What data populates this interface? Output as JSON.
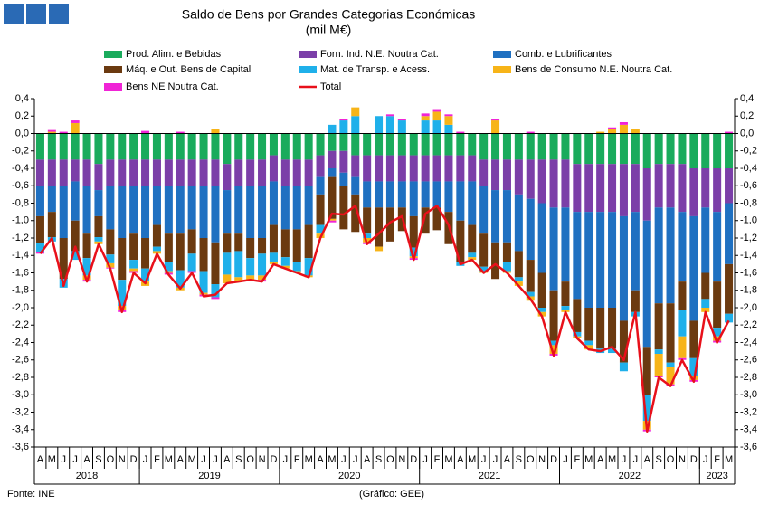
{
  "chart_data": {
    "type": "stacked-bar",
    "title": "Saldo de Bens por Grandes Categorias Económicas",
    "subtitle": "(mil M€)",
    "source": "Fonte: INE",
    "credit": "(Gráfico: GEE)",
    "categories": [
      "A",
      "M",
      "J",
      "J",
      "A",
      "S",
      "O",
      "N",
      "D",
      "J",
      "F",
      "M",
      "A",
      "M",
      "J",
      "J",
      "A",
      "S",
      "O",
      "N",
      "D",
      "J",
      "F",
      "M",
      "A",
      "M",
      "J",
      "J",
      "A",
      "S",
      "O",
      "N",
      "D",
      "J",
      "F",
      "M",
      "A",
      "M",
      "J",
      "J",
      "A",
      "S",
      "O",
      "N",
      "D",
      "J",
      "F",
      "M",
      "A",
      "M",
      "J",
      "J",
      "A",
      "S",
      "O",
      "N",
      "D",
      "J",
      "F",
      "M"
    ],
    "years": [
      "2018",
      "2019",
      "2020",
      "2021",
      "2022",
      "2023"
    ],
    "ylim": [
      -3.6,
      0.4
    ],
    "yticks": [
      {
        "value": 0.4,
        "label": "0,4"
      },
      {
        "value": 0.2,
        "label": "0,2"
      },
      {
        "value": 0,
        "label": "0,0"
      },
      {
        "value": -0.2,
        "label": "-0,2"
      },
      {
        "value": -0.4,
        "label": "-0,4"
      },
      {
        "value": -0.6,
        "label": "-0,6"
      },
      {
        "value": -0.8,
        "label": "-0,8"
      },
      {
        "value": -1.0,
        "label": "-1,0"
      },
      {
        "value": -1.2,
        "label": "-1,2"
      },
      {
        "value": -1.4,
        "label": "-1,4"
      },
      {
        "value": -1.6,
        "label": "-1,6"
      },
      {
        "value": -1.8,
        "label": "-1,8"
      },
      {
        "value": -2.0,
        "label": "-2,0"
      },
      {
        "value": -2.2,
        "label": "-2,2"
      },
      {
        "value": -2.4,
        "label": "-2,4"
      },
      {
        "value": -2.6,
        "label": "-2,6"
      },
      {
        "value": -2.8,
        "label": "-2,8"
      },
      {
        "value": -3.0,
        "label": "-3,0"
      },
      {
        "value": -3.2,
        "label": "-3,2"
      },
      {
        "value": -3.4,
        "label": "-3,4"
      },
      {
        "value": -3.6,
        "label": "-3,6"
      }
    ],
    "grid": false,
    "series": [
      {
        "name": "Prod. Alim. e Bebidas",
        "color": "#1aab5c",
        "values": [
          -0.3,
          -0.3,
          -0.3,
          -0.3,
          -0.3,
          -0.35,
          -0.3,
          -0.3,
          -0.3,
          -0.3,
          -0.3,
          -0.3,
          -0.3,
          -0.3,
          -0.3,
          -0.3,
          -0.35,
          -0.3,
          -0.3,
          -0.3,
          -0.25,
          -0.3,
          -0.3,
          -0.3,
          -0.25,
          -0.2,
          -0.2,
          -0.25,
          -0.25,
          -0.25,
          -0.25,
          -0.25,
          -0.25,
          -0.25,
          -0.25,
          -0.25,
          -0.25,
          -0.25,
          -0.3,
          -0.3,
          -0.3,
          -0.3,
          -0.3,
          -0.3,
          -0.3,
          -0.3,
          -0.35,
          -0.35,
          -0.35,
          -0.35,
          -0.35,
          -0.35,
          -0.4,
          -0.35,
          -0.35,
          -0.35,
          -0.4,
          -0.4,
          -0.4,
          -0.4
        ]
      },
      {
        "name": "Forn. Ind. N.E. Noutra Cat.",
        "color": "#7b3fa8",
        "values": [
          -0.3,
          -0.3,
          -0.3,
          -0.25,
          -0.3,
          -0.3,
          -0.3,
          -0.3,
          -0.3,
          -0.3,
          -0.3,
          -0.3,
          -0.3,
          -0.3,
          -0.3,
          -0.3,
          -0.3,
          -0.3,
          -0.3,
          -0.3,
          -0.3,
          -0.3,
          -0.3,
          -0.3,
          -0.25,
          -0.2,
          -0.25,
          -0.25,
          -0.3,
          -0.3,
          -0.3,
          -0.3,
          -0.3,
          -0.3,
          -0.3,
          -0.3,
          -0.3,
          -0.3,
          -0.3,
          -0.35,
          -0.35,
          -0.4,
          -0.45,
          -0.5,
          -0.55,
          -0.55,
          -0.55,
          -0.55,
          -0.55,
          -0.55,
          -0.6,
          -0.55,
          -0.6,
          -0.5,
          -0.5,
          -0.55,
          -0.55,
          -0.45,
          -0.5,
          -0.4
        ]
      },
      {
        "name": "Comb. e Lubrificantes",
        "color": "#1f70c1",
        "values": [
          -0.35,
          -0.3,
          -0.6,
          -0.45,
          -0.55,
          -0.3,
          -0.5,
          -0.6,
          -0.55,
          -0.6,
          -0.45,
          -0.55,
          -0.55,
          -0.5,
          -0.6,
          -0.65,
          -0.5,
          -0.55,
          -0.6,
          -0.6,
          -0.5,
          -0.5,
          -0.5,
          -0.45,
          -0.2,
          -0.1,
          -0.15,
          -0.2,
          -0.3,
          -0.3,
          -0.3,
          -0.3,
          -0.4,
          -0.3,
          -0.3,
          -0.35,
          -0.45,
          -0.5,
          -0.55,
          -0.6,
          -0.6,
          -0.65,
          -0.7,
          -0.8,
          -0.95,
          -0.85,
          -1.0,
          -1.1,
          -1.1,
          -1.1,
          -1.2,
          -0.9,
          -1.45,
          -1.1,
          -1.1,
          -0.8,
          -1.2,
          -0.75,
          -0.8,
          -0.7
        ]
      },
      {
        "name": "Máq. e Out. Bens de Capital",
        "color": "#6b3a10",
        "values": [
          -0.31,
          -0.29,
          -0.47,
          -0.35,
          -0.28,
          -0.24,
          -0.29,
          -0.48,
          -0.3,
          -0.35,
          -0.25,
          -0.33,
          -0.42,
          -0.28,
          -0.38,
          -0.48,
          -0.22,
          -0.2,
          -0.23,
          -0.18,
          -0.32,
          -0.32,
          -0.38,
          -0.38,
          -0.35,
          -0.48,
          -0.5,
          -0.43,
          -0.3,
          -0.45,
          -0.39,
          -0.27,
          -0.36,
          -0.3,
          -0.26,
          -0.37,
          -0.47,
          -0.32,
          -0.38,
          -0.42,
          -0.23,
          -0.3,
          -0.37,
          -0.4,
          -0.58,
          -0.28,
          -0.38,
          -0.38,
          -0.47,
          -0.47,
          -0.48,
          -0.25,
          -0.55,
          -0.53,
          -0.68,
          -0.33,
          -0.43,
          -0.3,
          -0.53,
          -0.57
        ]
      },
      {
        "name": "Mat. de Transp. e Acess.",
        "color": "#1fb0ea",
        "values": [
          -0.1,
          -0.05,
          -0.1,
          -0.1,
          -0.2,
          -0.05,
          -0.1,
          -0.3,
          -0.1,
          -0.15,
          -0.05,
          -0.1,
          -0.2,
          -0.2,
          -0.25,
          -0.15,
          -0.25,
          -0.3,
          -0.2,
          -0.25,
          -0.1,
          -0.1,
          -0.1,
          -0.2,
          -0.1,
          0.1,
          0.15,
          0.2,
          -0.05,
          0.2,
          0.2,
          0.15,
          -0.1,
          0.15,
          0.15,
          0.1,
          -0.05,
          -0.05,
          -0.05,
          0,
          -0.1,
          -0.05,
          -0.05,
          -0.05,
          -0.05,
          -0.05,
          -0.05,
          -0.05,
          -0.05,
          -0.05,
          -0.1,
          -0.05,
          -0.3,
          -0.05,
          -0.05,
          -0.3,
          -0.2,
          -0.1,
          -0.1,
          -0.1
        ]
      },
      {
        "name": "Bens de Consumo N.E. Noutra Cat.",
        "color": "#f7b418",
        "values": [
          0,
          0.02,
          0,
          0.12,
          -0.05,
          -0.03,
          -0.05,
          -0.05,
          -0.03,
          -0.05,
          -0.03,
          -0.02,
          -0.03,
          0,
          -0.02,
          0.05,
          -0.1,
          -0.05,
          -0.05,
          -0.05,
          -0.03,
          -0.03,
          -0.02,
          -0.02,
          -0.05,
          -0.02,
          0,
          0.1,
          -0.05,
          -0.05,
          0,
          0,
          -0.02,
          0.05,
          0.1,
          0.1,
          0,
          -0.03,
          -0.02,
          0.15,
          -0.02,
          -0.05,
          -0.05,
          -0.05,
          -0.1,
          -0.02,
          -0.02,
          -0.05,
          0.02,
          0.05,
          0.1,
          0.05,
          -0.1,
          -0.25,
          -0.2,
          -0.25,
          -0.05,
          -0.05,
          -0.05,
          0
        ]
      },
      {
        "name": "Bens NE Noutra Cat.",
        "color": "#f024d6",
        "values": [
          -0.02,
          0.02,
          0.02,
          0.03,
          -0.02,
          0,
          -0.01,
          -0.02,
          -0.02,
          0.03,
          0,
          -0.02,
          0.02,
          -0.02,
          -0.02,
          -0.02,
          0,
          0,
          0,
          -0.02,
          0,
          0,
          0,
          0,
          0,
          -0.02,
          0.02,
          0,
          -0.02,
          0,
          0.02,
          0.02,
          -0.02,
          0.03,
          0.03,
          0.02,
          0.02,
          0,
          0,
          0.02,
          0,
          0,
          0.02,
          0,
          -0.02,
          0,
          0,
          0,
          0,
          0.02,
          0.03,
          0,
          -0.02,
          -0.02,
          -0.02,
          -0.02,
          -0.02,
          0,
          -0.02,
          0.02
        ]
      }
    ],
    "total": {
      "name": "Total",
      "color": "#e8101a",
      "values": [
        -1.38,
        -1.2,
        -1.75,
        -1.3,
        -1.7,
        -1.27,
        -1.55,
        -2.05,
        -1.6,
        -1.72,
        -1.38,
        -1.62,
        -1.78,
        -1.6,
        -1.87,
        -1.85,
        -1.72,
        -1.7,
        -1.68,
        -1.7,
        -1.5,
        -1.55,
        -1.6,
        -1.65,
        -1.2,
        -0.92,
        -0.93,
        -0.83,
        -1.27,
        -1.15,
        -1.02,
        -0.95,
        -1.45,
        -0.92,
        -0.83,
        -1.05,
        -1.5,
        -1.45,
        -1.6,
        -1.5,
        -1.6,
        -1.75,
        -1.9,
        -2.1,
        -2.55,
        -2.05,
        -2.35,
        -2.48,
        -2.5,
        -2.45,
        -2.6,
        -2.05,
        -3.42,
        -2.8,
        -2.9,
        -2.6,
        -2.85,
        -2.05,
        -2.4,
        -2.15
      ]
    }
  }
}
